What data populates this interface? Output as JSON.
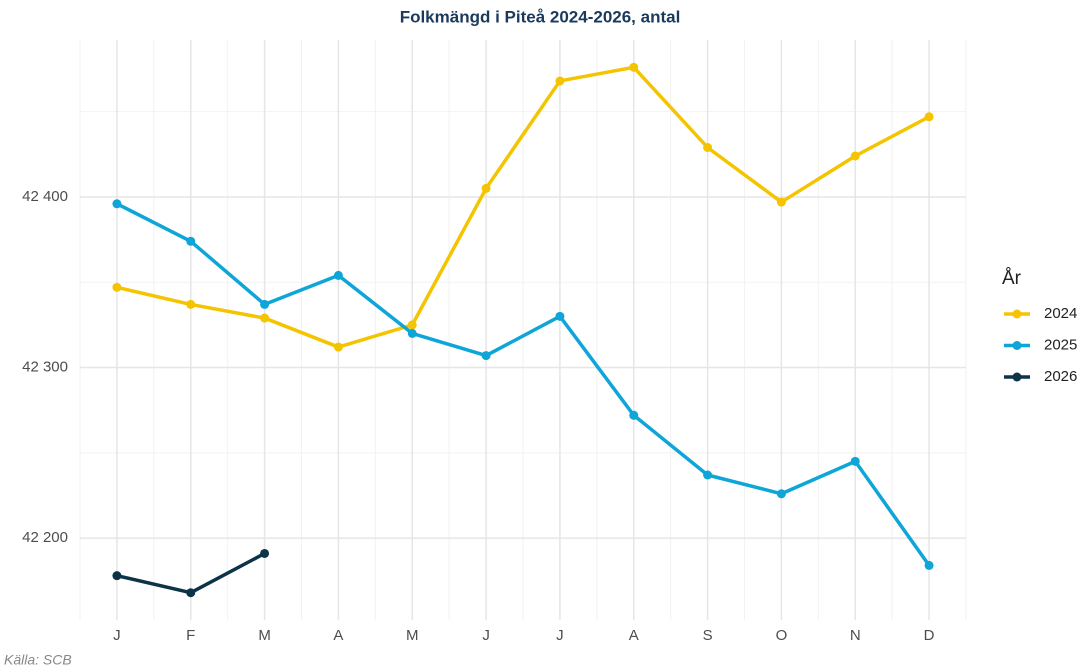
{
  "chart_data": {
    "type": "line",
    "title": "Folkmängd i Piteå 2024-2026, antal",
    "caption": "Källa: SCB",
    "legend_title": "År",
    "legend_position": "right",
    "categories": [
      "J",
      "F",
      "M",
      "A",
      "M",
      "J",
      "J",
      "A",
      "S",
      "O",
      "N",
      "D"
    ],
    "series": [
      {
        "name": "2024",
        "color": "#f5c400",
        "values": [
          42347,
          42337,
          42329,
          42312,
          42325,
          42405,
          42468,
          42476,
          42429,
          42397,
          42424,
          42447
        ]
      },
      {
        "name": "2025",
        "color": "#0ea5d8",
        "values": [
          42396,
          42374,
          42337,
          42354,
          42320,
          42307,
          42330,
          42272,
          42237,
          42226,
          42245,
          42184
        ]
      },
      {
        "name": "2026",
        "color": "#0d3349",
        "values": [
          42178,
          42168,
          42191,
          null,
          null,
          null,
          null,
          null,
          null,
          null,
          null,
          null
        ]
      }
    ],
    "ylim": [
      42152,
      42492
    ],
    "yticks": [
      {
        "value": 42200,
        "label": "42 200"
      },
      {
        "value": 42300,
        "label": "42 300"
      },
      {
        "value": 42400,
        "label": "42 400"
      }
    ],
    "minor_yticks": [
      42250,
      42350,
      42450
    ],
    "grid": true
  }
}
